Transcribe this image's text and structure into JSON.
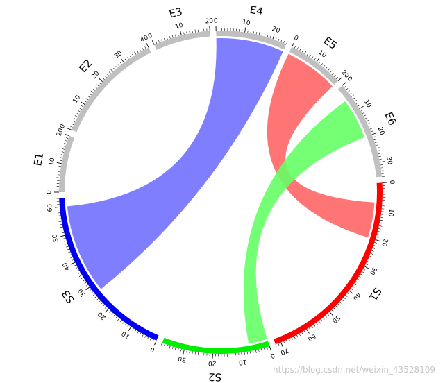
{
  "chart_data": {
    "type": "chord",
    "title": "",
    "sectors": [
      {
        "name": "E1",
        "length": 20,
        "color": "#c0c0c0",
        "tick_labels": [
          "0",
          "10",
          "20"
        ]
      },
      {
        "name": "E2",
        "length": 40,
        "color": "#c0c0c0",
        "tick_labels": [
          "0",
          "10",
          "20",
          "30",
          "40"
        ]
      },
      {
        "name": "E3",
        "length": 20,
        "color": "#c0c0c0",
        "tick_labels": [
          "0",
          "10",
          "20"
        ]
      },
      {
        "name": "E4",
        "length": 25,
        "color": "#c0c0c0",
        "tick_labels": [
          "0",
          "10",
          "20"
        ]
      },
      {
        "name": "E5",
        "length": 20,
        "color": "#c0c0c0",
        "tick_labels": [
          "0",
          "10",
          "20"
        ]
      },
      {
        "name": "E6",
        "length": 35,
        "color": "#c0c0c0",
        "tick_labels": [
          "0",
          "10",
          "20",
          "30"
        ]
      },
      {
        "name": "S1",
        "length": 72,
        "color": "#ff0000",
        "tick_labels": [
          "0",
          "10",
          "20",
          "30",
          "40",
          "50",
          "60",
          "70"
        ]
      },
      {
        "name": "S2",
        "length": 38,
        "color": "#00ee00",
        "tick_labels": [
          "0",
          "10",
          "20",
          "30"
        ]
      },
      {
        "name": "S3",
        "length": 63,
        "color": "#0000ee",
        "tick_labels": [
          "0",
          "10",
          "20",
          "30",
          "40",
          "50",
          "60"
        ]
      }
    ],
    "links": [
      {
        "from": "S3",
        "from_range": [
          27,
          60
        ],
        "to": "E4",
        "to_range": [
          0,
          25
        ],
        "color": "#7070ff"
      },
      {
        "from": "S1",
        "from_range": [
          7,
          20
        ],
        "to": "E5",
        "to_range": [
          0,
          20
        ],
        "color": "#ff6666"
      },
      {
        "from": "S2",
        "from_range": [
          0,
          7
        ],
        "to": "E6",
        "to_range": [
          5,
          20
        ],
        "color": "#66ff66"
      }
    ]
  },
  "watermark": "https://blog.csdn.net/weixin_43528109"
}
